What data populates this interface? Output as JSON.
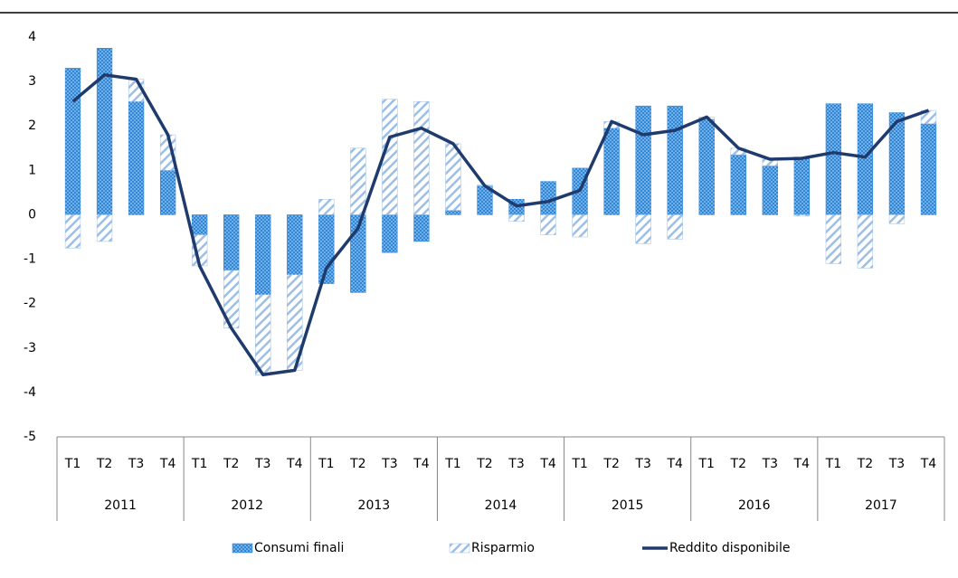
{
  "chart_data": {
    "type": "combo",
    "categories": [
      "T1",
      "T2",
      "T3",
      "T4",
      "T1",
      "T2",
      "T3",
      "T4",
      "T1",
      "T2",
      "T3",
      "T4",
      "T1",
      "T2",
      "T3",
      "T4",
      "T1",
      "T2",
      "T3",
      "T4",
      "T1",
      "T2",
      "T3",
      "T4",
      "T1",
      "T2",
      "T3",
      "T4"
    ],
    "groups": [
      "2011",
      "2012",
      "2013",
      "2014",
      "2015",
      "2016",
      "2017"
    ],
    "series": [
      {
        "name": "Consumi finali",
        "type": "bar",
        "color": "#2e86d6",
        "values": [
          3.3,
          3.75,
          2.55,
          1.0,
          -0.45,
          -1.25,
          -1.8,
          -1.35,
          -1.55,
          -1.75,
          -0.85,
          -0.6,
          0.1,
          0.65,
          0.35,
          0.75,
          1.05,
          1.95,
          2.45,
          2.45,
          2.15,
          1.35,
          1.1,
          1.3,
          2.5,
          2.5,
          2.3,
          2.05
        ]
      },
      {
        "name": "Risparmio",
        "type": "bar",
        "color": "#9dbfe6",
        "values": [
          -0.75,
          -0.6,
          0.5,
          0.8,
          -0.7,
          -1.3,
          -1.8,
          -2.15,
          0.35,
          1.5,
          2.6,
          2.55,
          1.5,
          0.02,
          -0.15,
          -0.45,
          -0.5,
          0.15,
          -0.65,
          -0.55,
          0.05,
          0.15,
          0.15,
          -0.03,
          -1.1,
          -1.2,
          -0.2,
          0.3
        ]
      },
      {
        "name": "Reddito disponibile",
        "type": "line",
        "color": "#1f3b6e",
        "values": [
          2.55,
          3.15,
          3.05,
          1.8,
          -1.15,
          -2.55,
          -3.6,
          -3.5,
          -1.2,
          -0.3,
          1.75,
          1.95,
          1.6,
          0.65,
          0.2,
          0.3,
          0.55,
          2.1,
          1.8,
          1.9,
          2.2,
          1.5,
          1.25,
          1.27,
          1.4,
          1.3,
          2.1,
          2.35
        ]
      }
    ],
    "ylim": [
      -5,
      4
    ],
    "yticks": [
      4,
      3,
      2,
      1,
      0,
      -1,
      -2,
      -3,
      -4,
      -5
    ],
    "grid": false,
    "legend": "bottom"
  }
}
